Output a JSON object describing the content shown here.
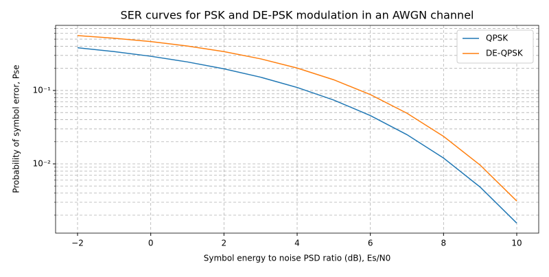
{
  "chart_data": {
    "type": "line",
    "title": "SER curves for PSK and DE-PSK modulation in an AWGN channel",
    "x_label": "Symbol energy to noise PSD ratio (dB), Es/N0",
    "y_label": "Probability of symbol error, Pse",
    "x": [
      -2,
      -1,
      0,
      1,
      2,
      3,
      4,
      5,
      6,
      7,
      8,
      9,
      10
    ],
    "series": [
      {
        "name": "QPSK",
        "color": "#1f77b4",
        "values": [
          0.3816,
          0.338,
          0.2922,
          0.2447,
          0.1972,
          0.1516,
          0.1098,
          0.074,
          0.0455,
          0.025,
          0.012,
          0.00483,
          0.00156
        ]
      },
      {
        "name": "DE-QPSK",
        "color": "#ff7f0e",
        "values": [
          0.559,
          0.5149,
          0.4628,
          0.4032,
          0.338,
          0.2695,
          0.2019,
          0.1398,
          0.0879,
          0.049,
          0.0237,
          0.00963,
          0.00312
        ]
      }
    ],
    "xlim": [
      -2.6,
      10.6
    ],
    "xticks": [
      {
        "value": -2,
        "label": "−2"
      },
      0,
      2,
      4,
      6,
      8,
      10
    ],
    "ylim": [
      0.00114,
      0.77
    ],
    "log_y": true,
    "yticks": [
      {
        "value": 0.01,
        "label": "10⁻²"
      },
      {
        "value": 0.1,
        "label": "10⁻¹"
      }
    ],
    "yminorticks": [
      0.002,
      0.003,
      0.004,
      0.005,
      0.006,
      0.007,
      0.008,
      0.009,
      0.02,
      0.03,
      0.04,
      0.05,
      0.06,
      0.07,
      0.08,
      0.09,
      0.2,
      0.3,
      0.4,
      0.5,
      0.6,
      0.7
    ],
    "grid": true,
    "legend": "upper right"
  }
}
